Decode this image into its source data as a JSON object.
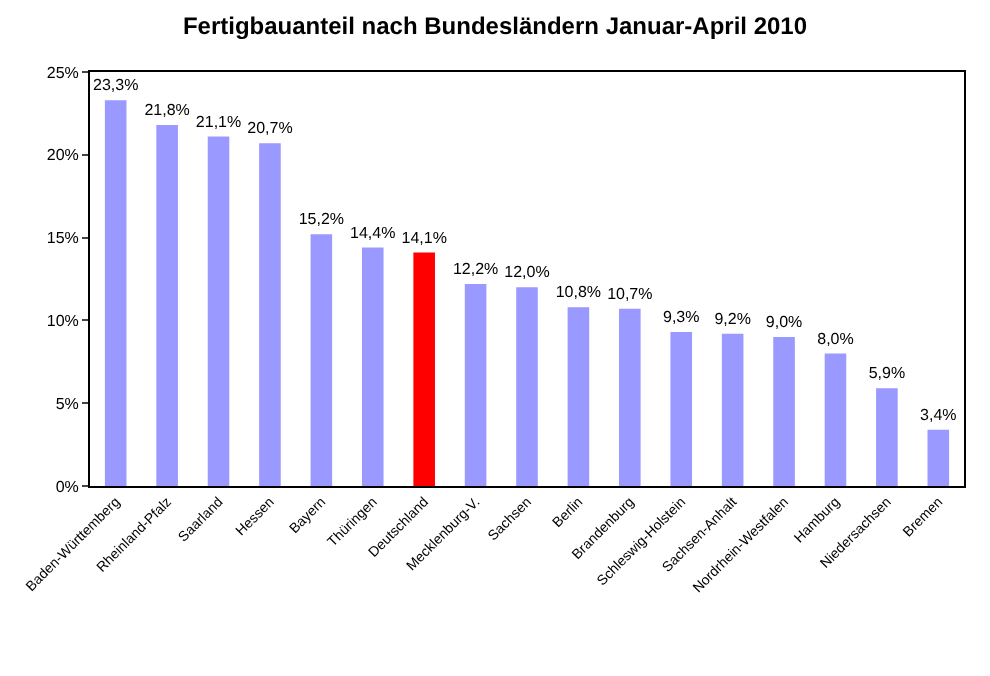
{
  "chart_data": {
    "type": "bar",
    "title": "Fertigbauanteil nach Bundesländern Januar-April 2010",
    "categories": [
      "Baden-Württemberg",
      "Rheinland-Pfalz",
      "Saarland",
      "Hessen",
      "Bayern",
      "Thüringen",
      "Deutschland",
      "Mecklenburg-V.",
      "Sachsen",
      "Berlin",
      "Brandenburg",
      "Schleswig-Holstein",
      "Sachsen-Anhalt",
      "Nordrhein-Westfalen",
      "Hamburg",
      "Niedersachsen",
      "Bremen"
    ],
    "values": [
      23.3,
      21.8,
      21.1,
      20.7,
      15.2,
      14.4,
      14.1,
      12.2,
      12.0,
      10.8,
      10.7,
      9.3,
      9.2,
      9.0,
      8.0,
      5.9,
      3.4
    ],
    "value_labels": [
      "23,3%",
      "21,8%",
      "21,1%",
      "20,7%",
      "15,2%",
      "14,4%",
      "14,1%",
      "12,2%",
      "12,0%",
      "10,8%",
      "10,7%",
      "9,3%",
      "9,2%",
      "9,0%",
      "8,0%",
      "5,9%",
      "3,4%"
    ],
    "colors": [
      "#9999ff",
      "#9999ff",
      "#9999ff",
      "#9999ff",
      "#9999ff",
      "#9999ff",
      "#ff0000",
      "#9999ff",
      "#9999ff",
      "#9999ff",
      "#9999ff",
      "#9999ff",
      "#9999ff",
      "#9999ff",
      "#9999ff",
      "#9999ff",
      "#9999ff"
    ],
    "ylim": [
      0,
      25
    ],
    "yticks": [
      {
        "value": 0,
        "label": "0%"
      },
      {
        "value": 5,
        "label": "5%"
      },
      {
        "value": 10,
        "label": "10%"
      },
      {
        "value": 15,
        "label": "15%"
      },
      {
        "value": 20,
        "label": "20%"
      },
      {
        "value": 25,
        "label": "25%"
      }
    ],
    "grid": false
  }
}
